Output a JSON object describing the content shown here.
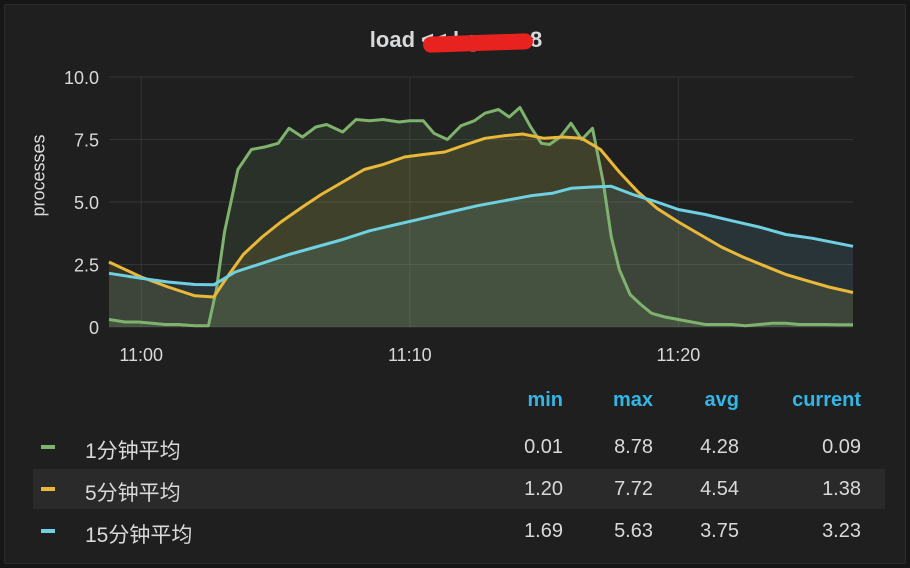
{
  "panel": {
    "title": "load << l-g          ...cn8",
    "ylabel": "processes"
  },
  "legend": {
    "headers": {
      "min": "min",
      "max": "max",
      "avg": "avg",
      "current": "current"
    },
    "rows": [
      {
        "name": "1分钟平均",
        "color": "#7eb26d",
        "min": "0.01",
        "max": "8.78",
        "avg": "4.28",
        "current": "0.09"
      },
      {
        "name": "5分钟平均",
        "color": "#eab839",
        "min": "1.20",
        "max": "7.72",
        "avg": "4.54",
        "current": "1.38"
      },
      {
        "name": "15分钟平均",
        "color": "#6ed0e0",
        "min": "1.69",
        "max": "5.63",
        "avg": "3.75",
        "current": "3.23"
      }
    ]
  },
  "chart_data": {
    "type": "area",
    "ylabel": "processes",
    "ylim": [
      0,
      10
    ],
    "yticks": [
      "0",
      "2.5",
      "5.0",
      "7.5",
      "10.0"
    ],
    "xlim_minutes": [
      -1.2,
      26.5
    ],
    "xticks": [
      {
        "t": 0,
        "label": "11:00"
      },
      {
        "t": 10,
        "label": "11:10"
      },
      {
        "t": 20,
        "label": "11:20"
      }
    ],
    "grid": true,
    "series": [
      {
        "name": "1分钟平均",
        "color": "#7eb26d",
        "x": [
          -1.2,
          -0.6,
          -0.1,
          0.4,
          0.9,
          1.4,
          2.0,
          2.5,
          2.8,
          3.1,
          3.6,
          4.1,
          4.6,
          5.1,
          5.5,
          6.0,
          6.5,
          6.9,
          7.5,
          8.0,
          8.5,
          9.0,
          9.6,
          10.0,
          10.5,
          10.9,
          11.4,
          11.9,
          12.4,
          12.8,
          13.3,
          13.7,
          14.1,
          14.5,
          14.9,
          15.2,
          15.6,
          16.0,
          16.4,
          16.8,
          17.2,
          17.5,
          17.8,
          18.2,
          18.6,
          19.0,
          19.5,
          20.0,
          20.5,
          21.0,
          21.5,
          22.0,
          22.5,
          23.0,
          23.5,
          24.0,
          24.5,
          25.0,
          25.5,
          26.0,
          26.5
        ],
        "y": [
          0.3,
          0.2,
          0.2,
          0.15,
          0.1,
          0.1,
          0.05,
          0.05,
          1.5,
          3.8,
          6.3,
          7.1,
          7.2,
          7.35,
          7.95,
          7.6,
          8.0,
          8.1,
          7.8,
          8.3,
          8.25,
          8.3,
          8.2,
          8.25,
          8.25,
          7.75,
          7.5,
          8.05,
          8.25,
          8.55,
          8.7,
          8.4,
          8.78,
          8.0,
          7.35,
          7.3,
          7.6,
          8.15,
          7.5,
          7.95,
          5.8,
          3.6,
          2.3,
          1.3,
          0.9,
          0.55,
          0.4,
          0.3,
          0.2,
          0.1,
          0.1,
          0.1,
          0.05,
          0.1,
          0.15,
          0.15,
          0.1,
          0.1,
          0.1,
          0.09,
          0.09
        ]
      },
      {
        "name": "5分钟平均",
        "color": "#eab839",
        "x": [
          -1.2,
          0.0,
          1.0,
          2.0,
          2.7,
          3.2,
          3.8,
          4.5,
          5.2,
          6.0,
          6.7,
          7.5,
          8.3,
          9.0,
          9.8,
          10.5,
          11.3,
          12.1,
          12.8,
          13.5,
          14.2,
          15.0,
          15.7,
          16.4,
          17.1,
          17.8,
          18.5,
          19.2,
          20.0,
          20.8,
          21.6,
          22.4,
          23.2,
          24.0,
          24.8,
          25.6,
          26.5
        ],
        "y": [
          2.6,
          2.0,
          1.6,
          1.25,
          1.2,
          2.0,
          2.9,
          3.6,
          4.2,
          4.8,
          5.3,
          5.8,
          6.3,
          6.5,
          6.8,
          6.9,
          7.0,
          7.3,
          7.55,
          7.65,
          7.72,
          7.55,
          7.6,
          7.55,
          7.1,
          6.2,
          5.4,
          4.75,
          4.2,
          3.7,
          3.2,
          2.8,
          2.45,
          2.1,
          1.85,
          1.6,
          1.38
        ]
      },
      {
        "name": "15分钟平均",
        "color": "#6ed0e0",
        "x": [
          -1.2,
          0.0,
          1.0,
          2.0,
          2.7,
          3.5,
          4.5,
          5.5,
          6.5,
          7.5,
          8.5,
          9.5,
          10.5,
          11.5,
          12.5,
          13.5,
          14.5,
          15.3,
          16.0,
          16.8,
          17.5,
          18.3,
          19.2,
          20.0,
          21.0,
          22.0,
          23.0,
          24.0,
          25.0,
          26.5
        ],
        "y": [
          2.15,
          1.95,
          1.8,
          1.7,
          1.69,
          2.2,
          2.55,
          2.9,
          3.2,
          3.5,
          3.85,
          4.1,
          4.35,
          4.6,
          4.85,
          5.05,
          5.25,
          5.35,
          5.55,
          5.6,
          5.63,
          5.3,
          5.0,
          4.7,
          4.5,
          4.25,
          4.0,
          3.7,
          3.55,
          3.23
        ]
      }
    ]
  }
}
